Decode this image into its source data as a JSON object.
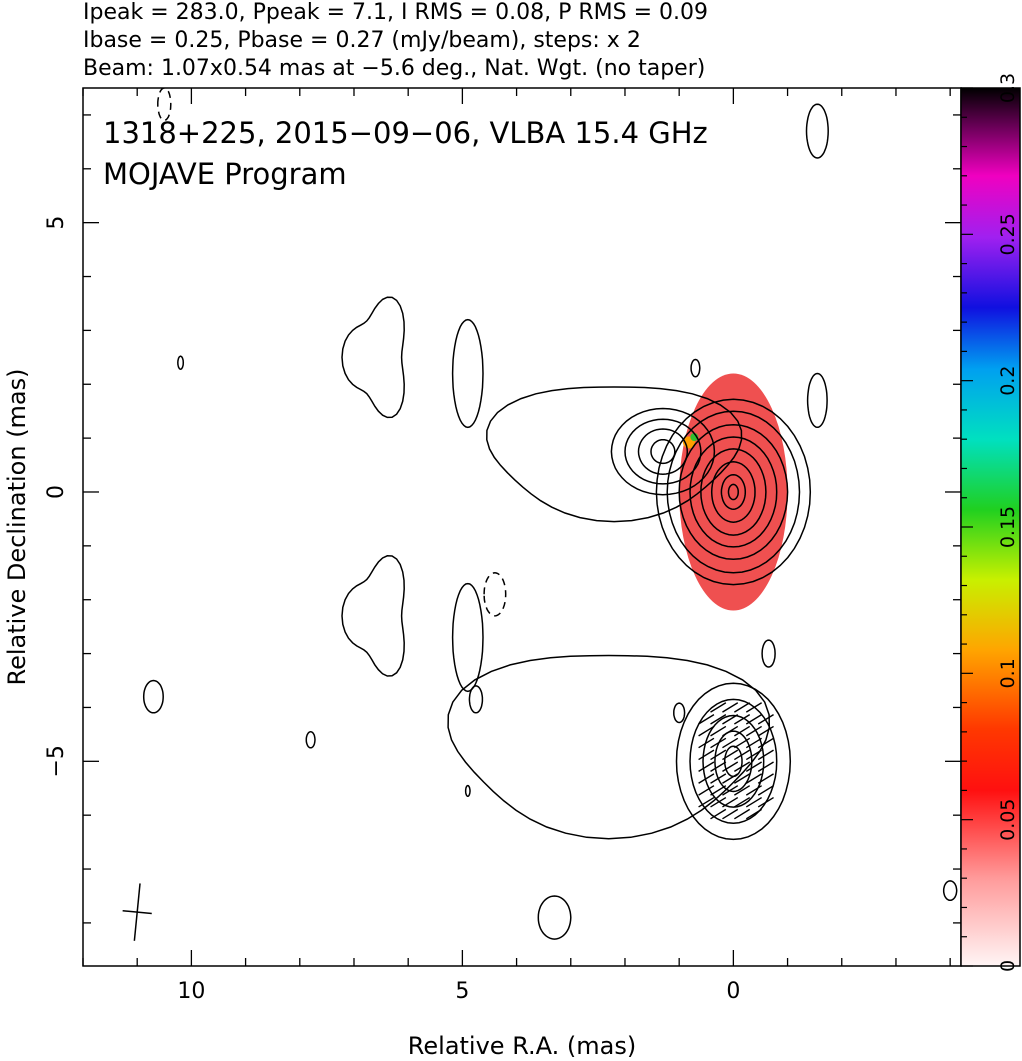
{
  "header": {
    "line1": "Ipeak = 283.0, Ppeak = 7.1, I RMS = 0.08, P RMS = 0.09",
    "line2": "Ibase = 0.25, Pbase = 0.27 (mJy/beam), steps: x 2",
    "line3": "Beam: 1.07x0.54 mas at −5.6 deg., Nat. Wgt. (no taper)"
  },
  "annotation": {
    "source_line": "1318+225, 2015−09−06, VLBA 15.4 GHz",
    "program_line": "MOJAVE Program"
  },
  "chart_data": {
    "type": "contour",
    "xlabel": "Relative R.A. (mas)",
    "ylabel": "Relative Declination (mas)",
    "xlim": [
      12.0,
      -4.2
    ],
    "ylim": [
      -8.8,
      7.5
    ],
    "x_ticks": [
      {
        "value": 10,
        "label": "10"
      },
      {
        "value": 5,
        "label": "5"
      },
      {
        "value": 0,
        "label": "0"
      }
    ],
    "y_ticks": [
      {
        "value": 5,
        "label": "5"
      },
      {
        "value": 0,
        "label": "0"
      },
      {
        "value": -5,
        "label": "−5"
      }
    ],
    "colorbar": {
      "min": 0,
      "max": 0.3,
      "tick_labels": [
        "0",
        "0.05",
        "0.1",
        "0.15",
        "0.2",
        "0.25",
        "0.3"
      ],
      "tick_values": [
        0,
        0.05,
        0.1,
        0.15,
        0.2,
        0.25,
        0.3
      ]
    },
    "ipeak": 283.0,
    "ppeak": 7.1,
    "i_rms": 0.08,
    "p_rms": 0.09,
    "ibase": 0.25,
    "pbase": 0.27,
    "contour_step_factor": 2,
    "beam": {
      "major_mas": 1.07,
      "minor_mas": 0.54,
      "pa_deg": -5.6
    },
    "colors": {
      "polarized_fill": "#ef5050",
      "contour": "#000000"
    }
  }
}
